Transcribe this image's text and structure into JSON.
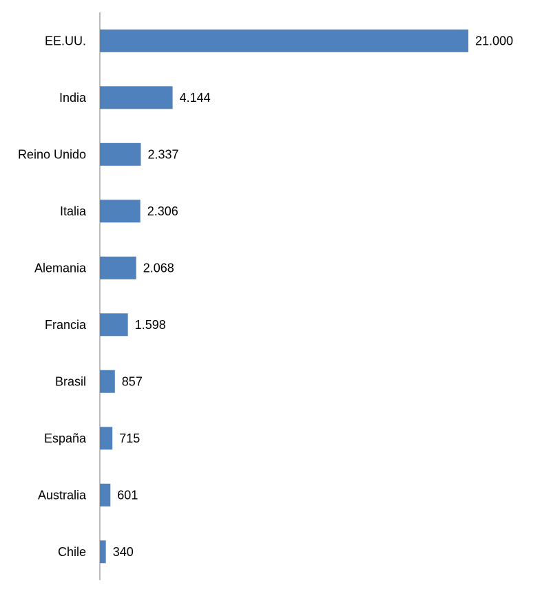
{
  "chart_data": {
    "type": "bar",
    "orientation": "horizontal",
    "categories": [
      "EE.UU.",
      "India",
      "Reino Unido",
      "Italia",
      "Alemania",
      "Francia",
      "Brasil",
      "España",
      "Australia",
      "Chile"
    ],
    "values": [
      21000,
      4144,
      2337,
      2306,
      2068,
      1598,
      857,
      715,
      601,
      340
    ],
    "value_labels": [
      "21.000",
      "4.144",
      "2.337",
      "2.306",
      "2.068",
      "1.598",
      "857",
      "715",
      "601",
      "340"
    ],
    "title": "",
    "xlabel": "",
    "ylabel": "",
    "xlim": [
      0,
      21000
    ],
    "grid": false,
    "legend": "none",
    "bar_color": "#4F81BD",
    "axis_color": "#A6A6A6"
  }
}
